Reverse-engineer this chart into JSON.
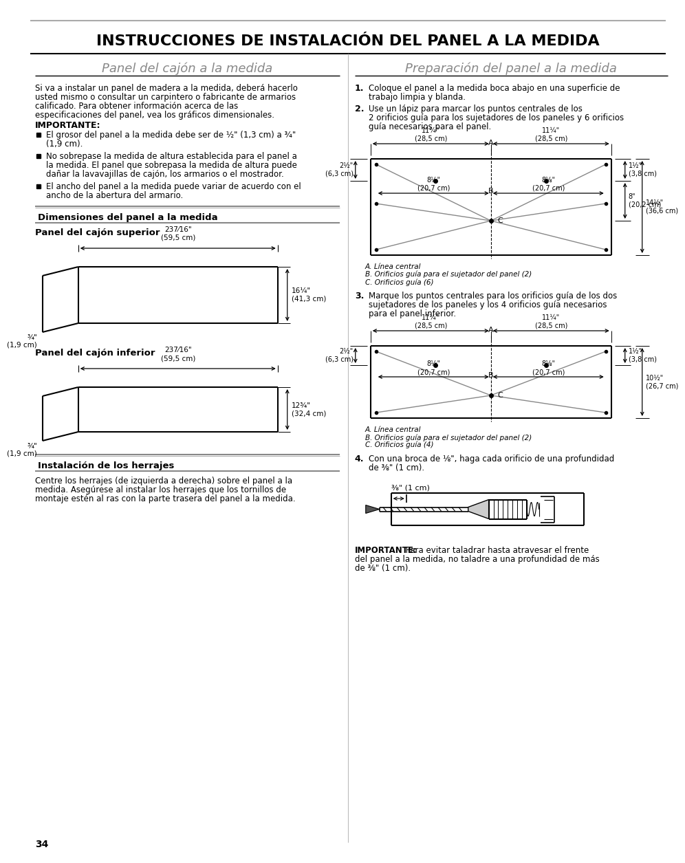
{
  "title": "INSTRUCCIONES DE INSTALACIÓN DEL PANEL A LA MEDIDA",
  "left_section_title": "Panel del cajón a la medida",
  "right_section_title": "Preparación del panel a la medida",
  "left_intro": "Si va a instalar un panel de madera a la medida, deberá hacerlo\nusted mismo o consultar un carpintero o fabricante de armarios\ncalificado. Para obtener información acerca de las\nespecificaciones del panel, vea los gráficos dimensionales.",
  "importante_label": "IMPORTANTE:",
  "bullets": [
    "El grosor del panel a la medida debe ser de ½\" (1,3 cm) a ¾\"\n(1,9 cm).",
    "No sobrepase la medida de altura establecida para el panel a\nla medida. El panel que sobrepasa la medida de altura puede\ndañar la lavavajillas de cajón, los armarios o el mostrador.",
    "El ancho del panel a la medida puede variar de acuerdo con el\nancho de la abertura del armario."
  ],
  "dim_section": "Dimensiones del panel a la medida",
  "upper_panel_title": "Panel del cajón superior",
  "lower_panel_title": "Panel del cajón inferior",
  "hardware_section": "Instalación de los herrajes",
  "hardware_text": "Centre los herrajes (de izquierda a derecha) sobre el panel a la\nmedida. Asegúrese al instalar los herrajes que los tornillos de\nmontaje estén al ras con la parte trasera del panel a la medida.",
  "upper_width": "237⁄16\"\n(59,5 cm)",
  "upper_height": "16¼\"\n(41,3 cm)",
  "upper_depth": "¾\"\n(1,9 cm)",
  "lower_width": "237⁄16\"\n(59,5 cm)",
  "lower_height": "12¾\"\n(32,4 cm)",
  "lower_depth": "¾\"\n(1,9 cm)",
  "right_step1_text": "Coloque el panel a la medida boca abajo en una superficie de\ntrabajo limpia y blanda.",
  "right_step2_text": "Use un lápiz para marcar los puntos centrales de los\n2 orificios guía para los sujetadores de los paneles y 6 orificios\nguía necesarios para el panel.",
  "right_step3_text": "Marque los puntos centrales para los orificios guía de los dos\nsujetadores de los paneles y los 4 orificios guía necesarios\npara el panel inferior.",
  "right_step4_text": "Con una broca de ⅛\", haga cada orificio de una profundidad\nde ⅜\" (1 cm).",
  "upper_legend": [
    "A. Línea central",
    "B. Orificios guía para el sujetador del panel (2)",
    "C. Orificios guía (6)"
  ],
  "lower_legend": [
    "A. Línea central",
    "B. Orificios guía para el sujetador del panel (2)",
    "C. Orificios guía (4)"
  ],
  "drill_label": "⅜\" (1 cm)",
  "importante_bottom_bold": "IMPORTANTE:",
  "importante_bottom_text": " Para evitar taladrar hasta atravesar el frente\ndel panel a la medida, no taladre a una profundidad de más\nde ⅜\" (1 cm).",
  "page_number": "34",
  "bg_color": "#ffffff"
}
